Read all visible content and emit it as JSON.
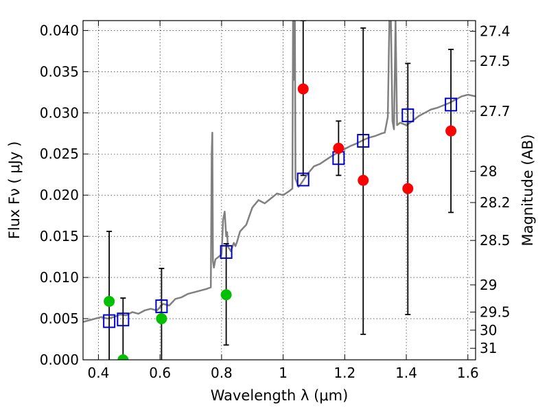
{
  "chart_data": {
    "type": "scatter",
    "xlabel": "Wavelength  λ (μm)",
    "ylabel": "Flux  Fν  ( μJy )",
    "ylabel_right": "Magnitude (AB)",
    "xlim": [
      0.35,
      1.625
    ],
    "ylim": [
      0.0,
      0.0412
    ],
    "grid": true,
    "x_ticks": [
      0.4,
      0.6,
      0.8,
      1.0,
      1.2,
      1.4,
      1.6
    ],
    "x_tick_labels": [
      "0.4",
      "0.6",
      "0.8",
      "1",
      "1.2",
      "1.4",
      "1.6"
    ],
    "y_ticks": [
      0.0,
      0.005,
      0.01,
      0.015,
      0.02,
      0.025,
      0.03,
      0.035,
      0.04
    ],
    "y_tick_labels": [
      "0.000",
      "0.005",
      "0.010",
      "0.015",
      "0.020",
      "0.025",
      "0.030",
      "0.035",
      "0.040"
    ],
    "right_ticks": [
      {
        "label": "27.4",
        "flux": 0.0399
      },
      {
        "label": "27.5",
        "flux": 0.0363
      },
      {
        "label": "27.7",
        "flux": 0.0302
      },
      {
        "label": "28",
        "flux": 0.0229
      },
      {
        "label": "28.2",
        "flux": 0.0191
      },
      {
        "label": "28.5",
        "flux": 0.0145
      },
      {
        "label": "29",
        "flux": 0.0091
      },
      {
        "label": "29.5",
        "flux": 0.0058
      },
      {
        "label": "30",
        "flux": 0.0036
      },
      {
        "label": "31",
        "flux": 0.0014
      }
    ],
    "model_spectrum": {
      "color": "#808080",
      "x": [
        0.35,
        0.37,
        0.39,
        0.41,
        0.43,
        0.45,
        0.47,
        0.49,
        0.51,
        0.53,
        0.55,
        0.57,
        0.59,
        0.61,
        0.63,
        0.65,
        0.67,
        0.69,
        0.71,
        0.73,
        0.75,
        0.765,
        0.768,
        0.77,
        0.772,
        0.775,
        0.78,
        0.79,
        0.8,
        0.805,
        0.81,
        0.815,
        0.818,
        0.82,
        0.83,
        0.84,
        0.845,
        0.85,
        0.86,
        0.88,
        0.9,
        0.92,
        0.94,
        0.96,
        0.98,
        1.0,
        1.02,
        1.03,
        1.032,
        1.034,
        1.036,
        1.038,
        1.04,
        1.05,
        1.06,
        1.08,
        1.1,
        1.12,
        1.14,
        1.16,
        1.18,
        1.2,
        1.22,
        1.24,
        1.26,
        1.28,
        1.3,
        1.32,
        1.33,
        1.34,
        1.345,
        1.35,
        1.355,
        1.36,
        1.365,
        1.37,
        1.38,
        1.4,
        1.42,
        1.44,
        1.46,
        1.48,
        1.5,
        1.52,
        1.54,
        1.56,
        1.58,
        1.6,
        1.625
      ],
      "y": [
        0.0046,
        0.0048,
        0.005,
        0.0052,
        0.005,
        0.0052,
        0.0055,
        0.0054,
        0.0058,
        0.0056,
        0.006,
        0.0062,
        0.006,
        0.0068,
        0.0066,
        0.0074,
        0.0076,
        0.008,
        0.0082,
        0.0084,
        0.0086,
        0.0088,
        0.025,
        0.0276,
        0.012,
        0.0112,
        0.0122,
        0.0125,
        0.0128,
        0.017,
        0.018,
        0.015,
        0.0155,
        0.0138,
        0.0132,
        0.0142,
        0.0138,
        0.0143,
        0.0156,
        0.0164,
        0.0185,
        0.0194,
        0.019,
        0.0196,
        0.0202,
        0.02,
        0.0205,
        0.0208,
        0.0412,
        0.041,
        0.034,
        0.0412,
        0.022,
        0.021,
        0.0215,
        0.0226,
        0.0235,
        0.0238,
        0.0243,
        0.0248,
        0.0252,
        0.0256,
        0.026,
        0.0263,
        0.0267,
        0.027,
        0.0272,
        0.0275,
        0.0276,
        0.0295,
        0.0412,
        0.0412,
        0.029,
        0.028,
        0.0412,
        0.0285,
        0.0288,
        0.0285,
        0.029,
        0.0296,
        0.03,
        0.0304,
        0.0306,
        0.0309,
        0.0312,
        0.0316,
        0.032,
        0.0322,
        0.032
      ]
    },
    "series": [
      {
        "marker": "square",
        "color": "#0000cc",
        "points": [
          {
            "x": 0.435,
            "y": 0.0047
          },
          {
            "x": 0.48,
            "y": 0.0049
          },
          {
            "x": 0.605,
            "y": 0.0065
          },
          {
            "x": 0.815,
            "y": 0.0131
          },
          {
            "x": 1.065,
            "y": 0.0219
          },
          {
            "x": 1.18,
            "y": 0.0245
          },
          {
            "x": 1.26,
            "y": 0.0266
          },
          {
            "x": 1.405,
            "y": 0.0297
          },
          {
            "x": 1.545,
            "y": 0.031
          }
        ]
      },
      {
        "marker": "circle",
        "color": "#00c000",
        "points": [
          {
            "x": 0.435,
            "y": 0.0071,
            "err_low": -0.002,
            "err_high": 0.0156
          },
          {
            "x": 0.48,
            "y": 0.0,
            "err_low": -0.002,
            "err_high": 0.0075
          },
          {
            "x": 0.605,
            "y": 0.005,
            "err_low": -0.002,
            "err_high": 0.0111
          },
          {
            "x": 0.815,
            "y": 0.0079,
            "err_low": 0.0018,
            "err_high": 0.0141
          }
        ]
      },
      {
        "marker": "circle",
        "color": "#ff0000",
        "points": [
          {
            "x": 1.065,
            "y": 0.0329,
            "err_low": 0.0224,
            "err_high": 0.0412
          },
          {
            "x": 1.18,
            "y": 0.0257,
            "err_low": 0.0224,
            "err_high": 0.029
          },
          {
            "x": 1.26,
            "y": 0.0218,
            "err_low": 0.0031,
            "err_high": 0.0403
          },
          {
            "x": 1.405,
            "y": 0.0208,
            "err_low": 0.0055,
            "err_high": 0.036
          },
          {
            "x": 1.545,
            "y": 0.0278,
            "err_low": 0.0179,
            "err_high": 0.0377
          }
        ]
      }
    ]
  }
}
